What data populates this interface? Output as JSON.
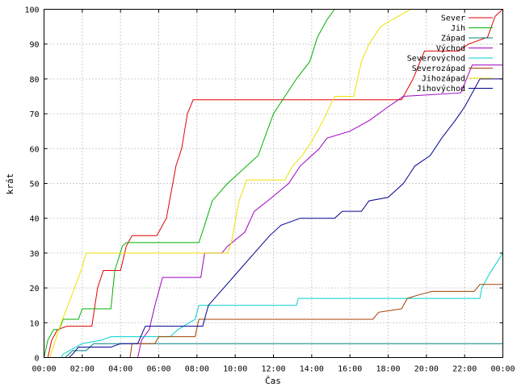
{
  "chart_data": {
    "type": "line",
    "xlabel": "Čas",
    "ylabel": "krát",
    "xlim": [
      0,
      24
    ],
    "ylim": [
      0,
      100
    ],
    "x_ticks": [
      0,
      2,
      4,
      6,
      8,
      10,
      12,
      14,
      16,
      18,
      20,
      22,
      24
    ],
    "x_tick_labels": [
      "00:00",
      "02:00",
      "04:00",
      "06:00",
      "08:00",
      "10:00",
      "12:00",
      "14:00",
      "16:00",
      "18:00",
      "20:00",
      "22:00",
      "00:00"
    ],
    "y_ticks": [
      0,
      10,
      20,
      30,
      40,
      50,
      60,
      70,
      80,
      90,
      100
    ],
    "y_tick_labels": [
      "0",
      "10",
      "20",
      "30",
      "40",
      "50",
      "60",
      "70",
      "80",
      "90",
      "100"
    ],
    "grid": true,
    "legend_position": "top-right",
    "series": [
      {
        "name": "Sever",
        "color": "#e00000",
        "points": [
          [
            0.2,
            0
          ],
          [
            0.4,
            5
          ],
          [
            0.7,
            8
          ],
          [
            1.2,
            9
          ],
          [
            2.5,
            9
          ],
          [
            2.8,
            20
          ],
          [
            3.1,
            25
          ],
          [
            4.0,
            25
          ],
          [
            4.3,
            32
          ],
          [
            4.6,
            35
          ],
          [
            5.9,
            35
          ],
          [
            6.4,
            40
          ],
          [
            6.9,
            55
          ],
          [
            7.2,
            60
          ],
          [
            7.5,
            70
          ],
          [
            7.8,
            74
          ],
          [
            18.7,
            74
          ],
          [
            19.3,
            80
          ],
          [
            19.9,
            88
          ],
          [
            21.7,
            88
          ],
          [
            22.2,
            90
          ],
          [
            23.2,
            92
          ],
          [
            23.6,
            98
          ],
          [
            24,
            100
          ]
        ]
      },
      {
        "name": "Jih",
        "color": "#00b000",
        "points": [
          [
            0,
            0
          ],
          [
            0.2,
            5
          ],
          [
            0.5,
            8
          ],
          [
            0.8,
            8
          ],
          [
            1.0,
            11
          ],
          [
            1.8,
            11
          ],
          [
            2.0,
            14
          ],
          [
            3.5,
            14
          ],
          [
            3.7,
            25
          ],
          [
            4.1,
            32
          ],
          [
            4.3,
            33
          ],
          [
            8.1,
            33
          ],
          [
            8.4,
            38
          ],
          [
            8.8,
            45
          ],
          [
            9.6,
            50
          ],
          [
            10.0,
            52
          ],
          [
            11.2,
            58
          ],
          [
            12.0,
            70
          ],
          [
            12.6,
            75
          ],
          [
            13.2,
            80
          ],
          [
            13.9,
            85
          ],
          [
            14.3,
            92
          ],
          [
            14.8,
            97
          ],
          [
            15.2,
            100
          ],
          [
            24,
            100
          ]
        ]
      },
      {
        "name": "Západ",
        "color": "#008080",
        "points": [
          [
            1.1,
            0
          ],
          [
            1.3,
            1
          ],
          [
            1.5,
            2
          ],
          [
            2.2,
            2
          ],
          [
            2.6,
            4
          ],
          [
            4.4,
            4
          ],
          [
            4.5,
            4
          ],
          [
            24,
            4
          ]
        ]
      },
      {
        "name": "Východ",
        "color": "#a000c0",
        "points": [
          [
            4.9,
            0
          ],
          [
            5.1,
            5
          ],
          [
            5.5,
            8
          ],
          [
            5.8,
            15
          ],
          [
            6.2,
            23
          ],
          [
            8.2,
            23
          ],
          [
            8.4,
            30
          ],
          [
            9.3,
            30
          ],
          [
            9.6,
            32
          ],
          [
            10.5,
            36
          ],
          [
            11.0,
            42
          ],
          [
            11.7,
            45
          ],
          [
            12.8,
            50
          ],
          [
            13.4,
            55
          ],
          [
            14.4,
            60
          ],
          [
            14.8,
            63
          ],
          [
            16.0,
            65
          ],
          [
            17.0,
            68
          ],
          [
            18.0,
            72
          ],
          [
            18.8,
            75
          ],
          [
            21.8,
            76
          ],
          [
            22.1,
            80
          ],
          [
            22.4,
            84
          ],
          [
            23.0,
            84
          ],
          [
            24,
            84
          ]
        ]
      },
      {
        "name": "Severovýchod",
        "color": "#00d0d0",
        "points": [
          [
            0.9,
            0
          ],
          [
            1.0,
            1
          ],
          [
            2.0,
            4
          ],
          [
            3.0,
            5
          ],
          [
            3.5,
            6
          ],
          [
            6.6,
            6
          ],
          [
            7.0,
            8
          ],
          [
            7.9,
            11
          ],
          [
            8.1,
            15
          ],
          [
            10.5,
            15
          ],
          [
            13.2,
            15
          ],
          [
            13.3,
            17
          ],
          [
            22.8,
            17
          ],
          [
            22.9,
            20
          ],
          [
            23.3,
            24
          ],
          [
            24,
            30
          ]
        ]
      },
      {
        "name": "Severozápad",
        "color": "#a04000",
        "points": [
          [
            4.5,
            0
          ],
          [
            4.6,
            4
          ],
          [
            5.8,
            4
          ],
          [
            6.0,
            6
          ],
          [
            7.9,
            6
          ],
          [
            8.1,
            11
          ],
          [
            17.2,
            11
          ],
          [
            17.5,
            13
          ],
          [
            18.7,
            14
          ],
          [
            19.0,
            17
          ],
          [
            19.6,
            18
          ],
          [
            20.3,
            19
          ],
          [
            22.5,
            19
          ],
          [
            22.8,
            21
          ],
          [
            24,
            21
          ]
        ]
      },
      {
        "name": "Jihozápad",
        "color": "#f0e000",
        "points": [
          [
            0.3,
            0
          ],
          [
            0.6,
            5
          ],
          [
            0.9,
            10
          ],
          [
            1.6,
            20
          ],
          [
            2.0,
            26
          ],
          [
            2.2,
            30
          ],
          [
            9.6,
            30
          ],
          [
            9.8,
            33
          ],
          [
            10.2,
            45
          ],
          [
            10.6,
            51
          ],
          [
            12.6,
            51
          ],
          [
            13.0,
            55
          ],
          [
            13.5,
            58
          ],
          [
            14.0,
            62
          ],
          [
            14.6,
            68
          ],
          [
            15.2,
            75
          ],
          [
            16.2,
            75
          ],
          [
            16.6,
            85
          ],
          [
            17.0,
            90
          ],
          [
            17.6,
            95
          ],
          [
            18.2,
            97
          ],
          [
            19.2,
            100
          ],
          [
            24,
            100
          ]
        ]
      },
      {
        "name": "Jihovýchod",
        "color": "#000090",
        "points": [
          [
            1.3,
            0
          ],
          [
            1.5,
            1
          ],
          [
            1.8,
            3
          ],
          [
            3.5,
            3
          ],
          [
            4.0,
            4
          ],
          [
            4.9,
            4
          ],
          [
            5.3,
            9
          ],
          [
            8.3,
            9
          ],
          [
            8.6,
            15
          ],
          [
            9.4,
            20
          ],
          [
            10.2,
            25
          ],
          [
            11.0,
            30
          ],
          [
            11.8,
            35
          ],
          [
            12.4,
            38
          ],
          [
            13.4,
            40
          ],
          [
            15.2,
            40
          ],
          [
            15.6,
            42
          ],
          [
            16.6,
            42
          ],
          [
            17.0,
            45
          ],
          [
            18.0,
            46
          ],
          [
            18.8,
            50
          ],
          [
            19.4,
            55
          ],
          [
            20.2,
            58
          ],
          [
            20.8,
            63
          ],
          [
            21.5,
            68
          ],
          [
            22.0,
            72
          ],
          [
            22.8,
            80
          ],
          [
            23.4,
            80
          ],
          [
            24,
            80
          ]
        ]
      }
    ]
  }
}
